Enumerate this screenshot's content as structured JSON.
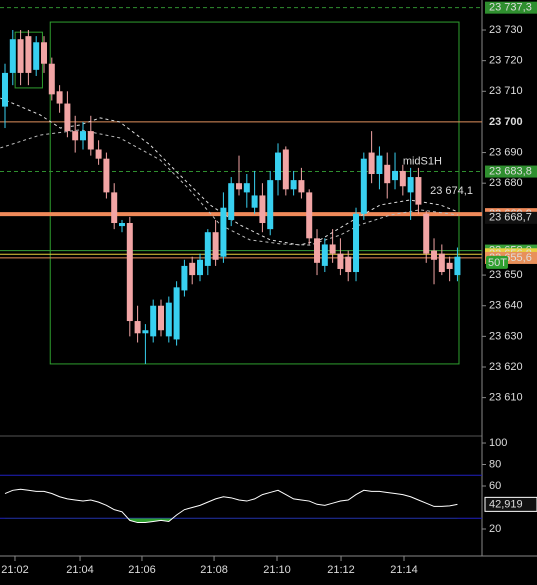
{
  "chart_data": {
    "type": "candlestick",
    "bar_type": "50T",
    "xlim": [
      -0.64,
      61.15
    ],
    "ylim": [
      23597.8,
      23739.8
    ],
    "xticks": [
      {
        "value": 1.28,
        "label": "21:02"
      },
      {
        "value": 9.62,
        "label": "21:04"
      },
      {
        "value": 17.56,
        "label": "21:06"
      },
      {
        "value": 26.8,
        "label": "21:08"
      },
      {
        "value": 34.87,
        "label": "21:10"
      },
      {
        "value": 43.08,
        "label": "21:12"
      },
      {
        "value": 51.15,
        "label": "21:14"
      }
    ],
    "yticks": [
      {
        "value": 23730,
        "label": "23 730"
      },
      {
        "value": 23720,
        "label": "23 720"
      },
      {
        "value": 23710,
        "label": "23 710"
      },
      {
        "value": 23690,
        "label": "23 690"
      },
      {
        "value": 23680,
        "label": "23 680"
      },
      {
        "value": 23650,
        "label": "23 650"
      },
      {
        "value": 23640,
        "label": "23 640"
      },
      {
        "value": 23630,
        "label": "23 630"
      },
      {
        "value": 23620,
        "label": "23 620"
      },
      {
        "value": 23610,
        "label": "23 610"
      }
    ],
    "up_color": "#38d0f0",
    "down_color": "#f2a5a5",
    "open": [
      23705,
      23716,
      23727,
      23728,
      23717,
      23726,
      23719,
      23710,
      23706,
      23697,
      23694,
      23697,
      23691,
      23688,
      23677,
      23666,
      23667,
      23635,
      23631,
      23630,
      23640,
      23630,
      23629,
      23645,
      23654,
      23650,
      23653,
      23664,
      23656,
      23668,
      23680,
      23677,
      23672,
      23676,
      23665,
      23681,
      23691,
      23678,
      23681,
      23677,
      23662,
      23653,
      23660,
      23657,
      23656,
      23651,
      23670,
      23690,
      23683,
      23686,
      23681,
      23684,
      23677,
      23682,
      23670,
      23658,
      23657,
      23654,
      23650
    ],
    "high": [
      23719,
      23730,
      23730,
      23730,
      23728,
      23728,
      23721,
      23712,
      23710,
      23702,
      23700,
      23702,
      23694,
      23690,
      23680,
      23668,
      23669,
      23640,
      23634,
      23642,
      23642,
      23643,
      23648,
      23655,
      23656,
      23657,
      23665,
      23668,
      23677,
      23682,
      23689,
      23683,
      23684,
      23680,
      23684,
      23693,
      23692,
      23684,
      23685,
      23678,
      23665,
      23662,
      23665,
      23662,
      23658,
      23672,
      23690,
      23697,
      23692,
      23690,
      23690,
      23686,
      23685,
      23685,
      23671,
      23662,
      23660,
      23656,
      23659
    ],
    "low": [
      23698,
      23712,
      23712,
      23712,
      23715,
      23716,
      23707,
      23703,
      23695,
      23690,
      23691,
      23689,
      23686,
      23675,
      23665,
      23664,
      23630,
      23628,
      23621,
      23628,
      23630,
      23628,
      23627,
      23643,
      23647,
      23648,
      23650,
      23653,
      23654,
      23666,
      23676,
      23672,
      23670,
      23664,
      23663,
      23676,
      23676,
      23676,
      23675,
      23660,
      23650,
      23651,
      23654,
      23650,
      23648,
      23648,
      23668,
      23680,
      23678,
      23675,
      23678,
      23676,
      23668,
      23670,
      23654,
      23647,
      23650,
      23648,
      23648
    ],
    "close": [
      23716,
      23727,
      23716,
      23716,
      23726,
      23719,
      23709,
      23706,
      23697,
      23694,
      23697,
      23691,
      23688,
      23677,
      23667,
      23667,
      23635,
      23631,
      23632,
      23640,
      23632,
      23641,
      23646,
      23653,
      23650,
      23655,
      23664,
      23655,
      23672,
      23680,
      23678,
      23680,
      23676,
      23667,
      23681,
      23690,
      23678,
      23681,
      23677,
      23662,
      23654,
      23660,
      23657,
      23652,
      23651,
      23670,
      23688,
      23683,
      23689,
      23680,
      23684,
      23679,
      23682,
      23673,
      23657,
      23655,
      23651,
      23652,
      23656
    ],
    "moving_averages": [
      {
        "color": "#dddddd",
        "x": [
          -0.6,
          4.5,
          7.1,
          9.6,
          12.2,
          14.7,
          18.6,
          22.4,
          26.3,
          30.1,
          34.0,
          37.8,
          40.4,
          44.2,
          48.1,
          51.9,
          55.8,
          58.1
        ],
        "values": [
          23707.8,
          23702.3,
          23698.0,
          23699.0,
          23701.3,
          23700.0,
          23692.5,
          23682.7,
          23672.9,
          23666.4,
          23661.5,
          23659.8,
          23661.5,
          23667.3,
          23672.9,
          23674.5,
          23672.9,
          23670.6
        ]
      },
      {
        "color": "#bbbbbb",
        "x": [
          -0.6,
          4.5,
          9.6,
          14.7,
          19.9,
          23.7,
          27.6,
          31.4,
          35.3,
          39.1,
          43.0,
          45.5,
          49.4,
          53.2,
          58.1
        ],
        "values": [
          23691.5,
          23695.7,
          23697.4,
          23694.8,
          23687.6,
          23677.8,
          23666.4,
          23661.5,
          23660.2,
          23659.8,
          23663.1,
          23666.4,
          23669.6,
          23671.3,
          23669.6
        ]
      }
    ],
    "levels": [
      {
        "value": 23737.3,
        "label": "23 737,3",
        "color": "#2f8f2f",
        "style": "dashed"
      },
      {
        "value": 23700,
        "label": "23 700",
        "color": "#e0905e",
        "style": "solid"
      },
      {
        "value": 23683.8,
        "label": "23 683,8",
        "color": "#2f8f2f",
        "style": "dashed"
      },
      {
        "value": 23669.9,
        "label": "23 669,9",
        "color": "#f08a5a",
        "style": "thick"
      },
      {
        "value": 23668.7,
        "label": "23 668,7",
        "color": "#444444",
        "style": "none"
      },
      {
        "value": 23658.0,
        "label": "23 658,0",
        "color": "#3aa03a",
        "style": "solid"
      },
      {
        "value": 23656.8,
        "label": "23 656,8",
        "color": "#e8d040",
        "style": "solid"
      },
      {
        "value": 23655.6,
        "label": "23 655,6",
        "color": "#e8905a",
        "style": "solid"
      }
    ],
    "annotations": [
      {
        "text": "23 674,1",
        "x": 54.5,
        "value": 23674.1
      },
      {
        "text": "midS1H",
        "x": 51,
        "value": 23683.8
      }
    ],
    "boxes": [
      {
        "x": [
          5.8,
          58.2
        ],
        "range": [
          23621,
          23732.6
        ],
        "color": "#2f9f2f"
      },
      {
        "x": [
          1.3,
          4.8
        ],
        "range": [
          23711.1,
          23729.3
        ],
        "color": "#2f9f2f"
      }
    ],
    "oscillator": {
      "ylim": [
        -4.2,
        105.6
      ],
      "yticks": [
        100,
        80,
        60,
        20
      ],
      "bands": [
        70,
        30
      ],
      "band_color": "#2020c0",
      "color": "#ffffff",
      "fill_color": "#2e9e2e",
      "values": [
        53,
        56,
        57,
        56,
        55,
        55,
        53,
        50,
        48,
        47,
        46,
        47,
        45,
        42,
        38,
        36,
        28,
        26,
        26,
        27,
        28,
        27,
        33,
        38,
        40,
        42,
        45,
        48,
        50,
        49,
        47,
        46,
        48,
        52,
        54,
        56,
        52,
        48,
        47,
        46,
        43,
        42,
        44,
        46,
        47,
        52,
        56,
        55,
        55,
        54,
        53,
        52,
        50,
        47,
        44,
        41,
        41,
        41.5,
        42.919
      ],
      "last": {
        "value": 42.919,
        "label": "42,919"
      }
    }
  }
}
